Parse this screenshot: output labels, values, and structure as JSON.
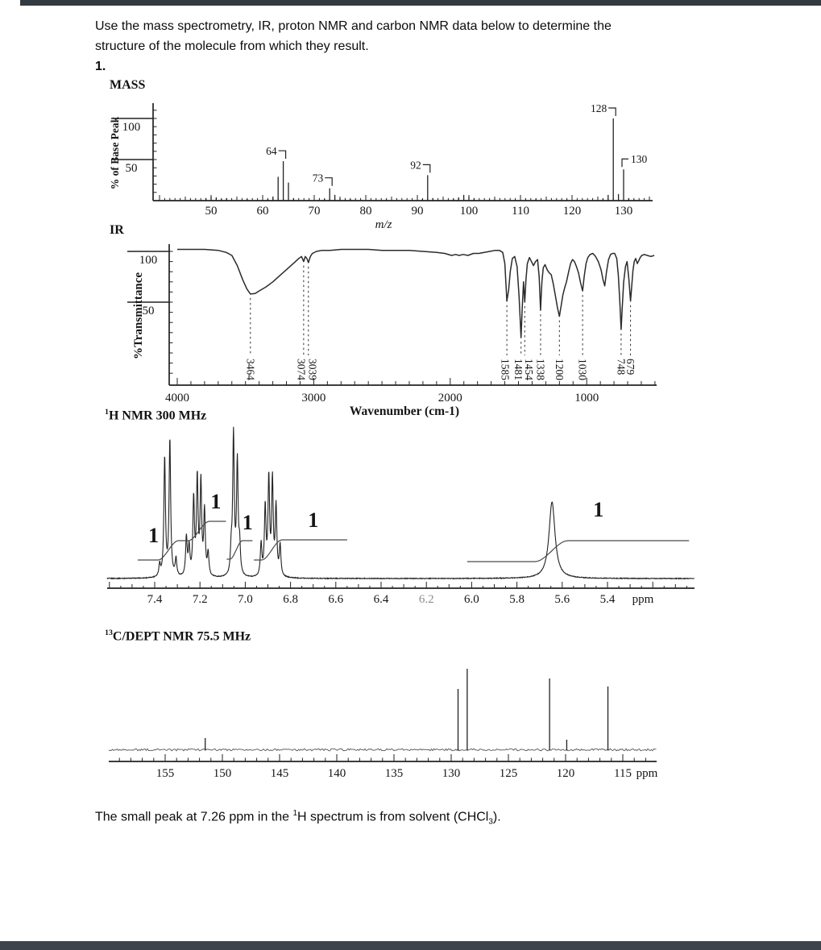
{
  "page": {
    "intro_line1": "Use the mass spectrometry, IR, proton NMR and carbon NMR data below to determine the",
    "intro_line2": "structure of the molecule from which they result.",
    "problem_number": "1.",
    "footnote": {
      "pre": "The small peak at 7.26 ppm in the ",
      "sup": "1",
      "mid": "H spectrum is from solvent (CHCl",
      "sub": "3",
      "post": ")."
    }
  },
  "sections": {
    "mass": {
      "title": "MASS"
    },
    "ir": {
      "title": "IR"
    },
    "h1": {
      "title_sup": "1",
      "title_main": "H NMR 300 MHz"
    },
    "c13": {
      "title_sup": "13",
      "title_main": "C/DEPT NMR 75.5 MHz"
    }
  },
  "chart_data": [
    {
      "id": "mass",
      "type": "bar",
      "title": "MASS",
      "xlabel": "m/z",
      "ylabel": "% of Base Peak",
      "xlim": [
        39,
        135.5
      ],
      "ylim": [
        0,
        118
      ],
      "grid": false,
      "legend": "none",
      "xticks": [
        50,
        60,
        70,
        80,
        90,
        100,
        110,
        120,
        130
      ],
      "yticks": [
        100,
        50
      ],
      "peaks": [
        [
          49,
          3
        ],
        [
          50,
          5
        ],
        [
          51,
          4
        ],
        [
          52,
          2
        ],
        [
          53,
          3
        ],
        [
          57,
          2
        ],
        [
          61,
          2
        ],
        [
          62,
          5
        ],
        [
          63,
          29
        ],
        [
          64,
          48
        ],
        [
          65,
          22
        ],
        [
          66,
          3
        ],
        [
          72,
          2
        ],
        [
          73,
          15
        ],
        [
          74,
          7
        ],
        [
          75,
          3
        ],
        [
          77,
          2
        ],
        [
          84,
          1.5
        ],
        [
          91,
          2
        ],
        [
          92,
          31
        ],
        [
          93,
          3
        ],
        [
          97,
          2
        ],
        [
          98,
          4
        ],
        [
          99,
          7
        ],
        [
          100,
          5
        ],
        [
          101,
          3
        ],
        [
          105,
          1.5
        ],
        [
          111,
          1.5
        ],
        [
          113,
          2
        ],
        [
          119,
          1.5
        ],
        [
          126,
          2
        ],
        [
          127,
          7
        ],
        [
          128,
          100
        ],
        [
          129,
          8
        ],
        [
          130,
          38
        ],
        [
          131,
          3
        ],
        [
          132,
          1.5
        ]
      ],
      "labels": [
        {
          "mz": 64,
          "text": "64",
          "hook": "right"
        },
        {
          "mz": 73,
          "text": "73",
          "hook": "right"
        },
        {
          "mz": 92,
          "text": "92",
          "hook": "right"
        },
        {
          "mz": 128,
          "text": "128",
          "hook": "right"
        },
        {
          "mz": 130,
          "text": "130",
          "hook": "left"
        }
      ]
    },
    {
      "id": "ir",
      "type": "line",
      "title": "IR",
      "xlabel": "Wavenumber (cm-1)",
      "ylabel": "%Transmittance",
      "xlim": [
        4000,
        500
      ],
      "ylim": [
        0,
        105
      ],
      "grid": false,
      "legend": "none",
      "xticks": [
        4000,
        3000,
        2000,
        1000
      ],
      "yticks": [
        100,
        50
      ],
      "band_labels": [
        3464,
        3074,
        3039,
        1585,
        1481,
        1454,
        1338,
        1200,
        1030,
        748,
        679
      ],
      "curve": [
        [
          4000,
          102
        ],
        [
          3900,
          102
        ],
        [
          3800,
          102
        ],
        [
          3700,
          101
        ],
        [
          3640,
          99
        ],
        [
          3600,
          96
        ],
        [
          3560,
          86
        ],
        [
          3520,
          72
        ],
        [
          3490,
          63
        ],
        [
          3464,
          58
        ],
        [
          3430,
          58.5
        ],
        [
          3400,
          61
        ],
        [
          3350,
          65
        ],
        [
          3300,
          70
        ],
        [
          3250,
          76
        ],
        [
          3200,
          82
        ],
        [
          3150,
          88
        ],
        [
          3110,
          93
        ],
        [
          3090,
          95
        ],
        [
          3074,
          90
        ],
        [
          3062,
          95
        ],
        [
          3050,
          93
        ],
        [
          3039,
          89
        ],
        [
          3025,
          95
        ],
        [
          3010,
          98
        ],
        [
          2980,
          100
        ],
        [
          2940,
          101
        ],
        [
          2880,
          101
        ],
        [
          2800,
          102
        ],
        [
          2700,
          102
        ],
        [
          2600,
          102
        ],
        [
          2500,
          101
        ],
        [
          2400,
          101
        ],
        [
          2300,
          101
        ],
        [
          2200,
          100
        ],
        [
          2100,
          99
        ],
        [
          2040,
          98
        ],
        [
          1990,
          96
        ],
        [
          1960,
          97
        ],
        [
          1935,
          96
        ],
        [
          1905,
          97
        ],
        [
          1870,
          96
        ],
        [
          1830,
          98
        ],
        [
          1790,
          98
        ],
        [
          1750,
          99
        ],
        [
          1710,
          100
        ],
        [
          1670,
          101
        ],
        [
          1640,
          101
        ],
        [
          1615,
          99
        ],
        [
          1600,
          88
        ],
        [
          1585,
          51
        ],
        [
          1572,
          62
        ],
        [
          1560,
          80
        ],
        [
          1545,
          93
        ],
        [
          1528,
          95
        ],
        [
          1510,
          85
        ],
        [
          1495,
          55
        ],
        [
          1481,
          15
        ],
        [
          1472,
          45
        ],
        [
          1463,
          70
        ],
        [
          1454,
          50
        ],
        [
          1445,
          72
        ],
        [
          1435,
          88
        ],
        [
          1420,
          94
        ],
        [
          1405,
          90
        ],
        [
          1390,
          86
        ],
        [
          1375,
          90
        ],
        [
          1360,
          92
        ],
        [
          1348,
          75
        ],
        [
          1338,
          42
        ],
        [
          1328,
          70
        ],
        [
          1318,
          84
        ],
        [
          1305,
          87
        ],
        [
          1290,
          82
        ],
        [
          1275,
          79
        ],
        [
          1260,
          77
        ],
        [
          1245,
          68
        ],
        [
          1230,
          57
        ],
        [
          1215,
          45
        ],
        [
          1200,
          36
        ],
        [
          1188,
          46
        ],
        [
          1175,
          57
        ],
        [
          1162,
          64
        ],
        [
          1148,
          70
        ],
        [
          1132,
          80
        ],
        [
          1118,
          88
        ],
        [
          1104,
          92
        ],
        [
          1090,
          90
        ],
        [
          1075,
          85
        ],
        [
          1060,
          79
        ],
        [
          1045,
          69
        ],
        [
          1030,
          61
        ],
        [
          1018,
          76
        ],
        [
          1005,
          88
        ],
        [
          992,
          94
        ],
        [
          975,
          97
        ],
        [
          955,
          98
        ],
        [
          935,
          95
        ],
        [
          915,
          90
        ],
        [
          895,
          82
        ],
        [
          880,
          72
        ],
        [
          868,
          66
        ],
        [
          855,
          80
        ],
        [
          840,
          92
        ],
        [
          825,
          97
        ],
        [
          810,
          98
        ],
        [
          795,
          98
        ],
        [
          780,
          93
        ],
        [
          768,
          76
        ],
        [
          758,
          52
        ],
        [
          748,
          23
        ],
        [
          739,
          46
        ],
        [
          729,
          70
        ],
        [
          716,
          85
        ],
        [
          704,
          90
        ],
        [
          691,
          73
        ],
        [
          679,
          51
        ],
        [
          670,
          66
        ],
        [
          661,
          81
        ],
        [
          652,
          90
        ],
        [
          641,
          93
        ],
        [
          629,
          88
        ],
        [
          618,
          91
        ],
        [
          608,
          94
        ],
        [
          596,
          96
        ],
        [
          578,
          97
        ],
        [
          556,
          96
        ],
        [
          530,
          95
        ],
        [
          505,
          96
        ]
      ]
    },
    {
      "id": "h1",
      "type": "line",
      "title": "1H NMR 300 MHz",
      "xlabel": "ppm",
      "xlim": [
        7.6,
        5.0
      ],
      "grid": false,
      "legend": "none",
      "xticks": [
        7.4,
        7.2,
        7.0,
        6.8,
        6.6,
        6.4,
        6.2,
        6.0,
        5.8,
        5.6,
        5.4
      ],
      "dim_ticks": [
        6.2
      ],
      "lines": [
        [
          7.378,
          15
        ],
        [
          7.356,
          148
        ],
        [
          7.333,
          170
        ],
        [
          7.306,
          22
        ],
        [
          7.26,
          48
        ],
        [
          7.248,
          35
        ],
        [
          7.228,
          95
        ],
        [
          7.212,
          120
        ],
        [
          7.196,
          115
        ],
        [
          7.18,
          80
        ],
        [
          7.164,
          28
        ],
        [
          7.062,
          30
        ],
        [
          7.052,
          175
        ],
        [
          7.035,
          140
        ],
        [
          7.025,
          35
        ],
        [
          6.93,
          40
        ],
        [
          6.912,
          85
        ],
        [
          6.896,
          120
        ],
        [
          6.88,
          118
        ],
        [
          6.864,
          85
        ],
        [
          6.846,
          38
        ]
      ],
      "broad_lines": [
        [
          5.645,
          95
        ]
      ],
      "integrals": [
        [
          [
            7.475,
            695
          ],
          [
            7.385,
            695
          ],
          [
            7.295,
            671
          ],
          [
            7.252,
            671
          ],
          [
            7.158,
            647
          ],
          [
            7.085,
            647
          ]
        ],
        [
          [
            7.082,
            694
          ],
          [
            7.068,
            694
          ],
          [
            7.012,
            671
          ],
          [
            6.968,
            671
          ]
        ],
        [
          [
            6.962,
            695
          ],
          [
            6.928,
            695
          ],
          [
            6.838,
            670
          ],
          [
            6.55,
            670
          ]
        ],
        [
          [
            6.02,
            697
          ],
          [
            5.72,
            697
          ],
          [
            5.575,
            671
          ],
          [
            5.04,
            671
          ]
        ]
      ],
      "integral_label_text": "1",
      "integral_labels": [
        [
          7.405,
          664
        ],
        [
          7.13,
          622
        ],
        [
          6.99,
          648
        ],
        [
          6.7,
          645
        ],
        [
          5.44,
          632
        ]
      ]
    },
    {
      "id": "c13",
      "type": "line",
      "title": "13C/DEPT NMR 75.5 MHz",
      "xlabel": "ppm",
      "xlim": [
        160,
        112
      ],
      "grid": false,
      "legend": "none",
      "xticks": [
        155,
        150,
        145,
        140,
        135,
        130,
        125,
        120,
        115
      ],
      "peaks": [
        [
          151.5,
          0.14
        ],
        [
          129.4,
          0.75
        ],
        [
          128.6,
          1.0
        ],
        [
          121.4,
          0.88
        ],
        [
          119.9,
          0.12
        ],
        [
          116.3,
          0.78
        ]
      ]
    }
  ]
}
